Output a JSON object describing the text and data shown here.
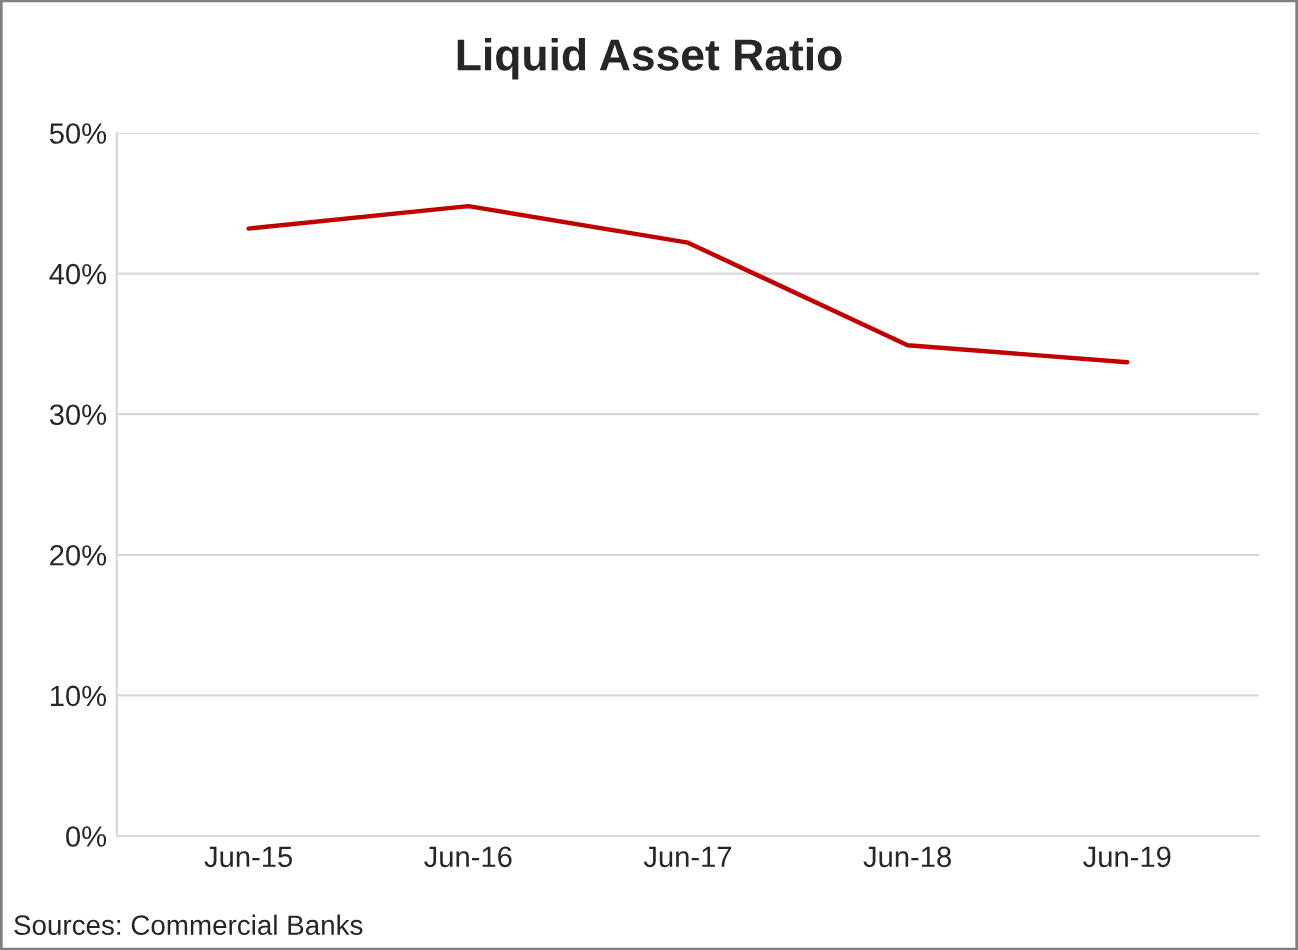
{
  "chart_data": {
    "type": "line",
    "title": "Liquid Asset Ratio",
    "categories": [
      "Jun-15",
      "Jun-16",
      "Jun-17",
      "Jun-18",
      "Jun-19"
    ],
    "series": [
      {
        "color": "#c00000",
        "values": [
          43.2,
          44.8,
          42.2,
          34.9,
          33.7
        ]
      }
    ],
    "ylim": [
      0,
      50
    ],
    "yticks": [
      {
        "value": 0,
        "label": "0%"
      },
      {
        "value": 10,
        "label": "10%"
      },
      {
        "value": 20,
        "label": "20%"
      },
      {
        "value": 30,
        "label": "30%"
      },
      {
        "value": 40,
        "label": "40%"
      },
      {
        "value": 50,
        "label": "50%"
      }
    ],
    "grid": "y",
    "marker": "none",
    "line_style": "solid",
    "annotations": [
      "Sources: Commercial Banks"
    ]
  }
}
